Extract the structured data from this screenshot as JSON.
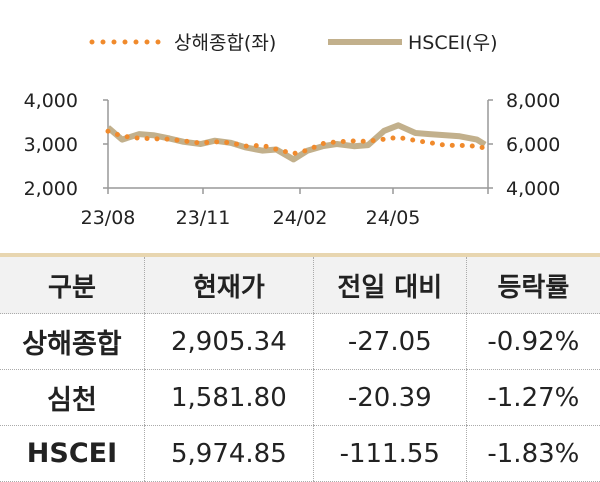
{
  "chart_data": {
    "type": "line",
    "legend_position": "top",
    "x_tick_labels": [
      "23/08",
      "23/11",
      "24/02",
      "24/05"
    ],
    "y_left": {
      "ticks": [
        "4,000",
        "3,000",
        "2,000"
      ],
      "range": [
        2000,
        4000
      ]
    },
    "y_right": {
      "ticks": [
        "8,000",
        "6,000",
        "4,000"
      ],
      "range": [
        4000,
        8000
      ]
    },
    "x": [
      "2023-08-01",
      "2023-08-15",
      "2023-09-01",
      "2023-09-15",
      "2023-10-01",
      "2023-10-15",
      "2023-11-01",
      "2023-11-15",
      "2023-12-01",
      "2023-12-15",
      "2024-01-01",
      "2024-01-15",
      "2024-02-01",
      "2024-02-15",
      "2024-03-01",
      "2024-03-15",
      "2024-04-01",
      "2024-04-15",
      "2024-05-01",
      "2024-05-15",
      "2024-06-01",
      "2024-06-15",
      "2024-07-01",
      "2024-07-15",
      "2024-08-01",
      "2024-08-09"
    ],
    "series": [
      {
        "name": "상해종합(좌)",
        "axis": "left",
        "style": "dotted",
        "color": "#f08a2c",
        "values": [
          3290,
          3180,
          3130,
          3120,
          3110,
          3070,
          3020,
          3050,
          3030,
          2950,
          2970,
          2880,
          2780,
          2860,
          3010,
          3050,
          3070,
          3060,
          3110,
          3150,
          3080,
          3030,
          2970,
          2970,
          2950,
          2905
        ]
      },
      {
        "name": "HSCEI(우)",
        "axis": "right",
        "style": "solid",
        "color": "#c2b08c",
        "values": [
          6750,
          6200,
          6450,
          6400,
          6250,
          6100,
          6000,
          6150,
          6050,
          5850,
          5700,
          5750,
          5300,
          5700,
          5900,
          6000,
          5900,
          5950,
          6600,
          6850,
          6500,
          6450,
          6400,
          6350,
          6200,
          5975
        ]
      }
    ],
    "grid": false
  },
  "table": {
    "headers": [
      "구분",
      "현재가",
      "전일 대비",
      "등락률"
    ],
    "rows": [
      [
        "상해종합",
        "2,905.34",
        "-27.05",
        "-0.92%"
      ],
      [
        "심천",
        "1,581.80",
        "-20.39",
        "-1.27%"
      ],
      [
        "HSCEI",
        "5,974.85",
        "-111.55",
        "-1.83%"
      ]
    ]
  }
}
